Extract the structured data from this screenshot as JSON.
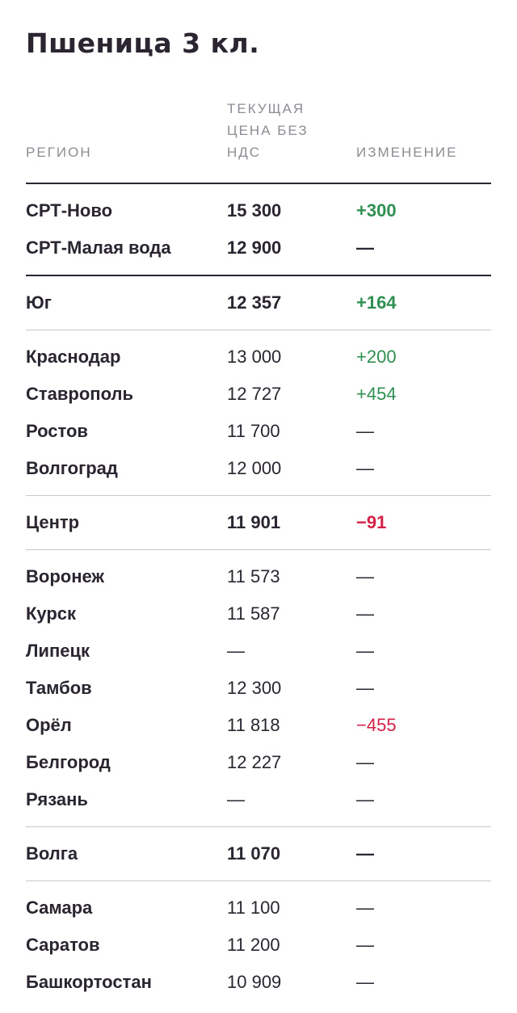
{
  "title": "Пшеница 3 кл.",
  "headers": {
    "region": "РЕГИОН",
    "price": "ТЕКУЩАЯ ЦЕНА БЕЗ НДС",
    "change": "ИЗМЕНЕНИЕ"
  },
  "colors": {
    "text": "#2a2530",
    "header_text": "#8f8b94",
    "positive": "#2f8f52",
    "negative": "#d61f45",
    "divider": "#c9c6cc"
  },
  "groups": [
    {
      "kind": "top",
      "rows": [
        {
          "name": "СРТ-Ново",
          "price": "15 300",
          "change": "+300",
          "trend": "up",
          "bold": true
        },
        {
          "name": "СРТ-Малая вода",
          "price": "12 900",
          "change": "—",
          "trend": "none",
          "bold": true
        }
      ]
    },
    {
      "kind": "sub",
      "rows": [
        {
          "name": "Юг",
          "price": "12 357",
          "change": "+164",
          "trend": "up",
          "bold": true
        }
      ]
    },
    {
      "kind": "sub",
      "rows": [
        {
          "name": "Краснодар",
          "price": "13 000",
          "change": "+200",
          "trend": "up",
          "bold": false
        },
        {
          "name": "Ставрополь",
          "price": "12 727",
          "change": "+454",
          "trend": "up",
          "bold": false
        },
        {
          "name": "Ростов",
          "price": "11 700",
          "change": "—",
          "trend": "none",
          "bold": false
        },
        {
          "name": "Волгоград",
          "price": "12 000",
          "change": "—",
          "trend": "none",
          "bold": false
        }
      ]
    },
    {
      "kind": "sub",
      "rows": [
        {
          "name": "Центр",
          "price": "11 901",
          "change": "−91",
          "trend": "down",
          "bold": true
        }
      ]
    },
    {
      "kind": "sub",
      "rows": [
        {
          "name": "Воронеж",
          "price": "11 573",
          "change": "—",
          "trend": "none",
          "bold": false
        },
        {
          "name": "Курск",
          "price": "11 587",
          "change": "—",
          "trend": "none",
          "bold": false
        },
        {
          "name": "Липецк",
          "price": "—",
          "change": "—",
          "trend": "none",
          "bold": false
        },
        {
          "name": "Тамбов",
          "price": "12 300",
          "change": "—",
          "trend": "none",
          "bold": false
        },
        {
          "name": "Орёл",
          "price": "11 818",
          "change": "−455",
          "trend": "down",
          "bold": false
        },
        {
          "name": "Белгород",
          "price": "12 227",
          "change": "—",
          "trend": "none",
          "bold": false
        },
        {
          "name": "Рязань",
          "price": "—",
          "change": "—",
          "trend": "none",
          "bold": false
        }
      ]
    },
    {
      "kind": "sub",
      "rows": [
        {
          "name": "Волга",
          "price": "11 070",
          "change": "—",
          "trend": "none",
          "bold": true
        }
      ]
    },
    {
      "kind": "last",
      "rows": [
        {
          "name": "Самара",
          "price": "11 100",
          "change": "—",
          "trend": "none",
          "bold": false
        },
        {
          "name": "Саратов",
          "price": "11 200",
          "change": "—",
          "trend": "none",
          "bold": false
        },
        {
          "name": "Башкортостан",
          "price": "10 909",
          "change": "—",
          "trend": "none",
          "bold": false
        }
      ]
    }
  ]
}
